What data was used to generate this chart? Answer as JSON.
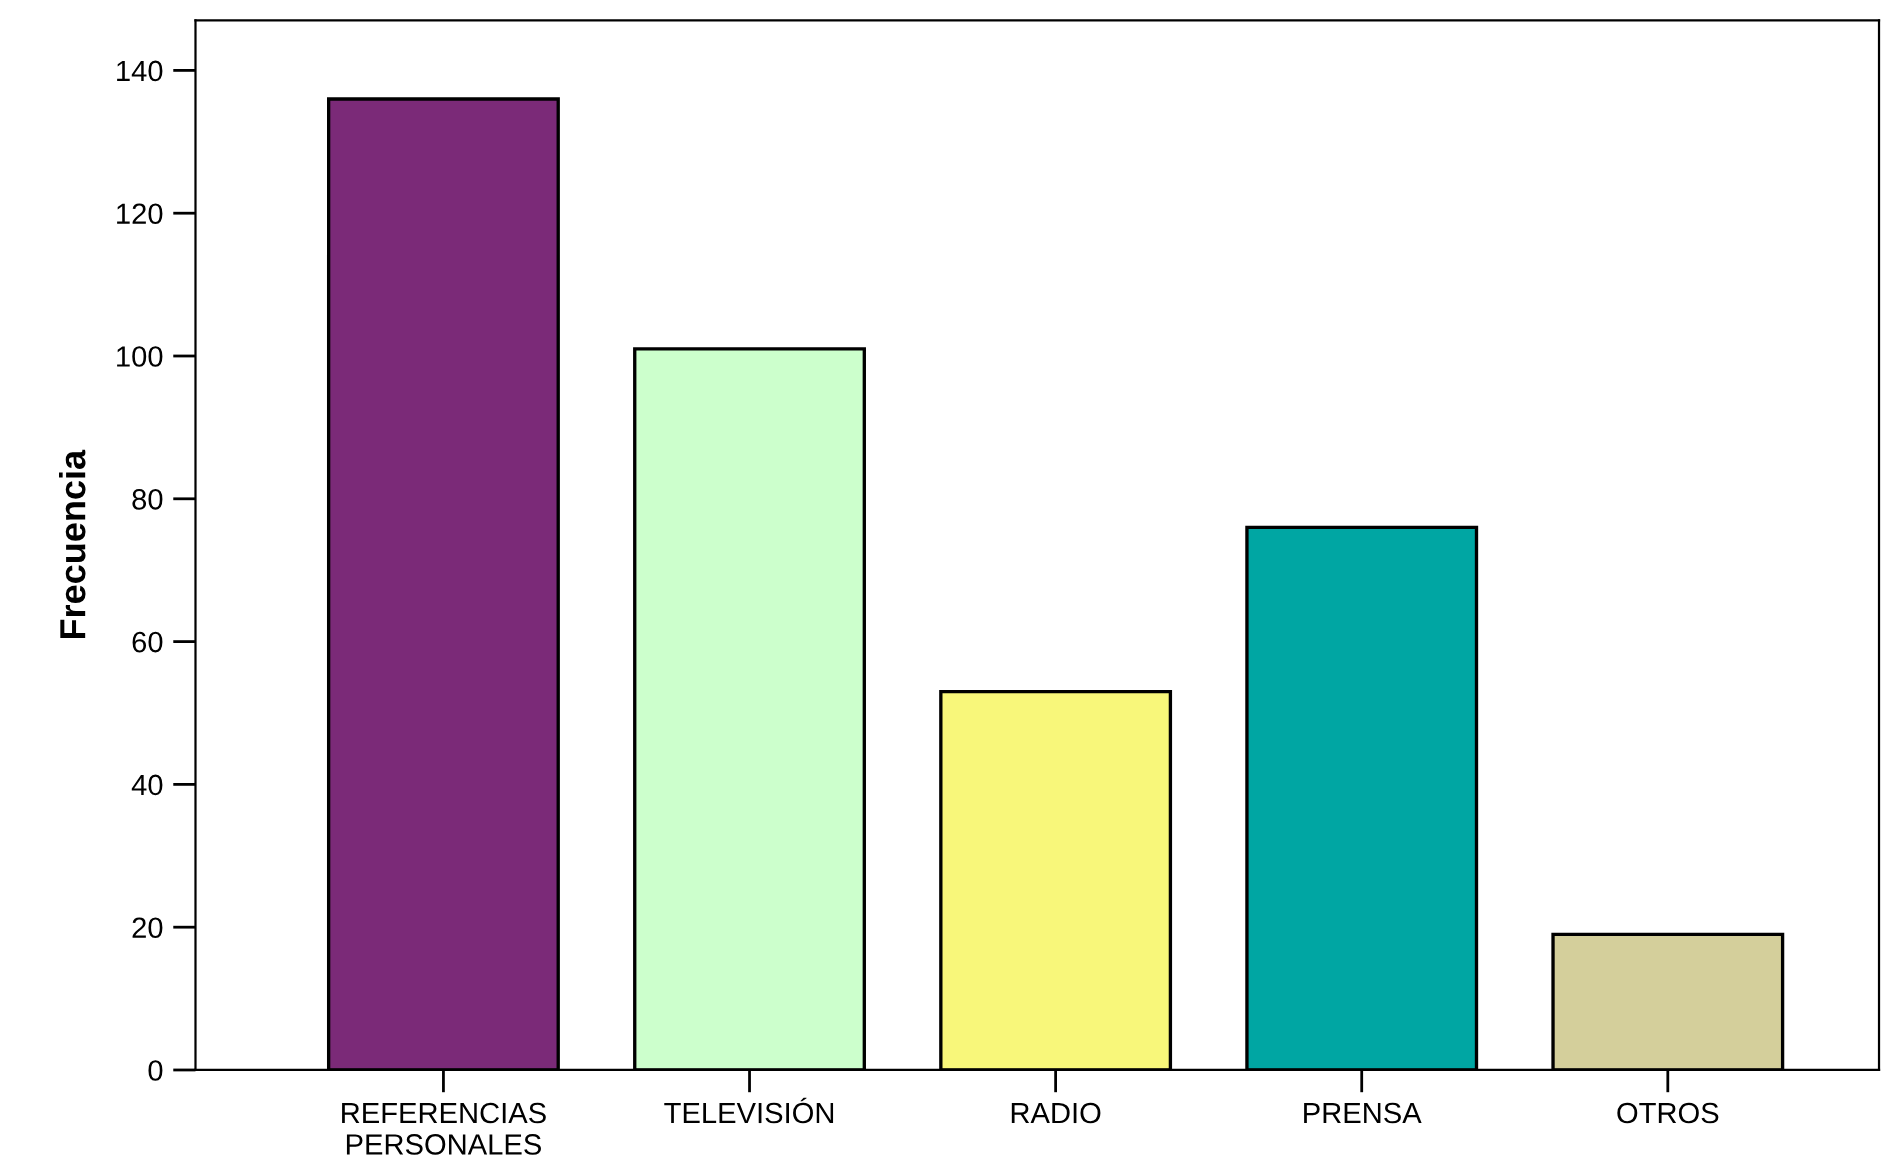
{
  "chart_data": {
    "type": "bar",
    "ylabel": "Frecuencia",
    "categories": [
      "REFERENCIAS\nPERSONALES",
      "TELEVISIÓN",
      "RADIO",
      "PRENSA",
      "OTROS"
    ],
    "values": [
      136,
      101,
      53,
      76,
      19
    ],
    "colors": [
      "#7b2a78",
      "#ccffcc",
      "#f8f77a",
      "#00a6a3",
      "#d4cf9b"
    ],
    "ylim": [
      0,
      147
    ],
    "yticks": [
      0,
      20,
      40,
      60,
      80,
      100,
      120,
      140
    ],
    "grid": false,
    "legend": false
  }
}
